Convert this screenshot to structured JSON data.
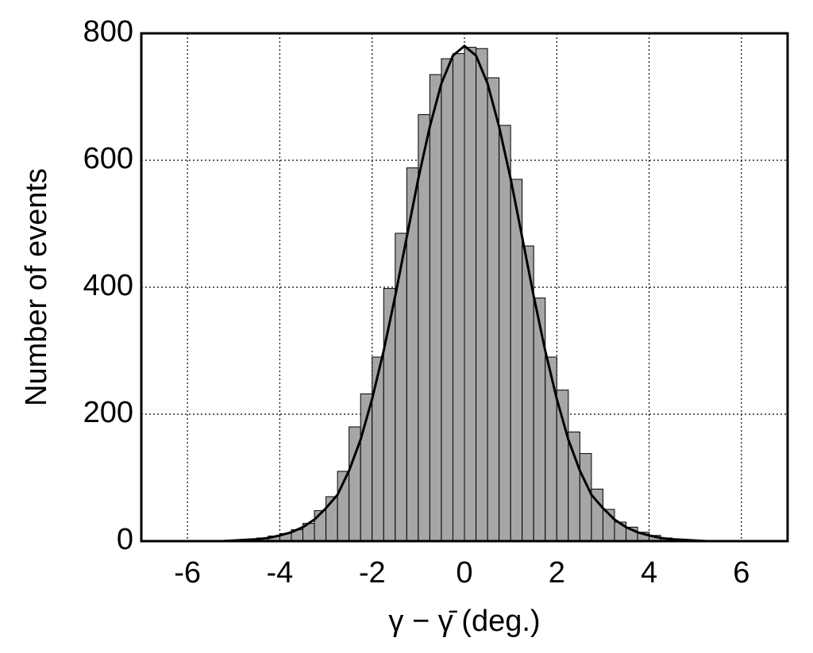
{
  "chart_data": {
    "type": "histogram",
    "x_label": "γ − γ̄ (deg.)",
    "y_label": "Number of events",
    "bins": [
      -7,
      -6.75,
      -6.5,
      -6.25,
      -6,
      -5.75,
      -5.5,
      -5.25,
      -5,
      -4.75,
      -4.5,
      -4.25,
      -4,
      -3.75,
      -3.5,
      -3.25,
      -3,
      -2.75,
      -2.5,
      -2.25,
      -2,
      -1.75,
      -1.5,
      -1.25,
      -1,
      -0.75,
      -0.5,
      -0.25,
      0,
      0.25,
      0.5,
      0.75,
      1,
      1.25,
      1.5,
      1.75,
      2,
      2.25,
      2.5,
      2.75,
      3,
      3.25,
      3.5,
      3.75,
      4,
      4.25,
      4.5,
      4.75,
      5,
      5.25,
      5.5,
      5.75,
      6,
      6.25,
      6.5,
      6.75,
      7
    ],
    "values": [
      0,
      0,
      0,
      0,
      0,
      1,
      1,
      1,
      2,
      3,
      5,
      8,
      12,
      18,
      28,
      48,
      70,
      110,
      180,
      232,
      290,
      398,
      485,
      588,
      672,
      735,
      760,
      768,
      778,
      776,
      730,
      655,
      570,
      465,
      383,
      290,
      238,
      172,
      138,
      82,
      50,
      30,
      22,
      14,
      9,
      5,
      3,
      2,
      1,
      1,
      1,
      0,
      0,
      0,
      0,
      0
    ],
    "color": "#a6a6a6",
    "fit": {
      "type": "line",
      "color": "#000000",
      "x": [
        -7,
        -6.75,
        -6.5,
        -6.25,
        -6,
        -5.75,
        -5.5,
        -5.25,
        -5,
        -4.75,
        -4.5,
        -4.25,
        -4,
        -3.75,
        -3.5,
        -3.25,
        -3,
        -2.75,
        -2.5,
        -2.25,
        -2,
        -1.75,
        -1.5,
        -1.25,
        -1,
        -0.75,
        -0.5,
        -0.25,
        0,
        0.25,
        0.5,
        0.75,
        1,
        1.25,
        1.5,
        1.75,
        2,
        2.25,
        2.5,
        2.75,
        3,
        3.25,
        3.5,
        3.75,
        4,
        4.25,
        4.5,
        4.75,
        5,
        5.25,
        5.5,
        5.75,
        6,
        6.25,
        6.5,
        6.75,
        7
      ],
      "values": [
        0,
        0,
        0,
        0,
        0,
        0,
        0,
        0,
        1,
        2,
        3,
        5,
        9,
        14,
        22,
        34,
        52,
        73,
        111,
        160,
        224,
        300,
        386,
        479,
        571,
        653,
        721,
        765,
        780,
        765,
        721,
        653,
        571,
        479,
        386,
        300,
        224,
        160,
        111,
        73,
        52,
        34,
        22,
        14,
        9,
        5,
        3,
        2,
        1,
        0,
        0,
        0,
        0,
        0,
        0,
        0,
        0
      ]
    },
    "xlim": [
      -7,
      7
    ],
    "ylim": [
      0,
      800
    ],
    "xticks": [
      -6,
      -4,
      -2,
      0,
      2,
      4,
      6
    ],
    "yticks": [
      0,
      200,
      400,
      600,
      800
    ],
    "grid": true
  }
}
